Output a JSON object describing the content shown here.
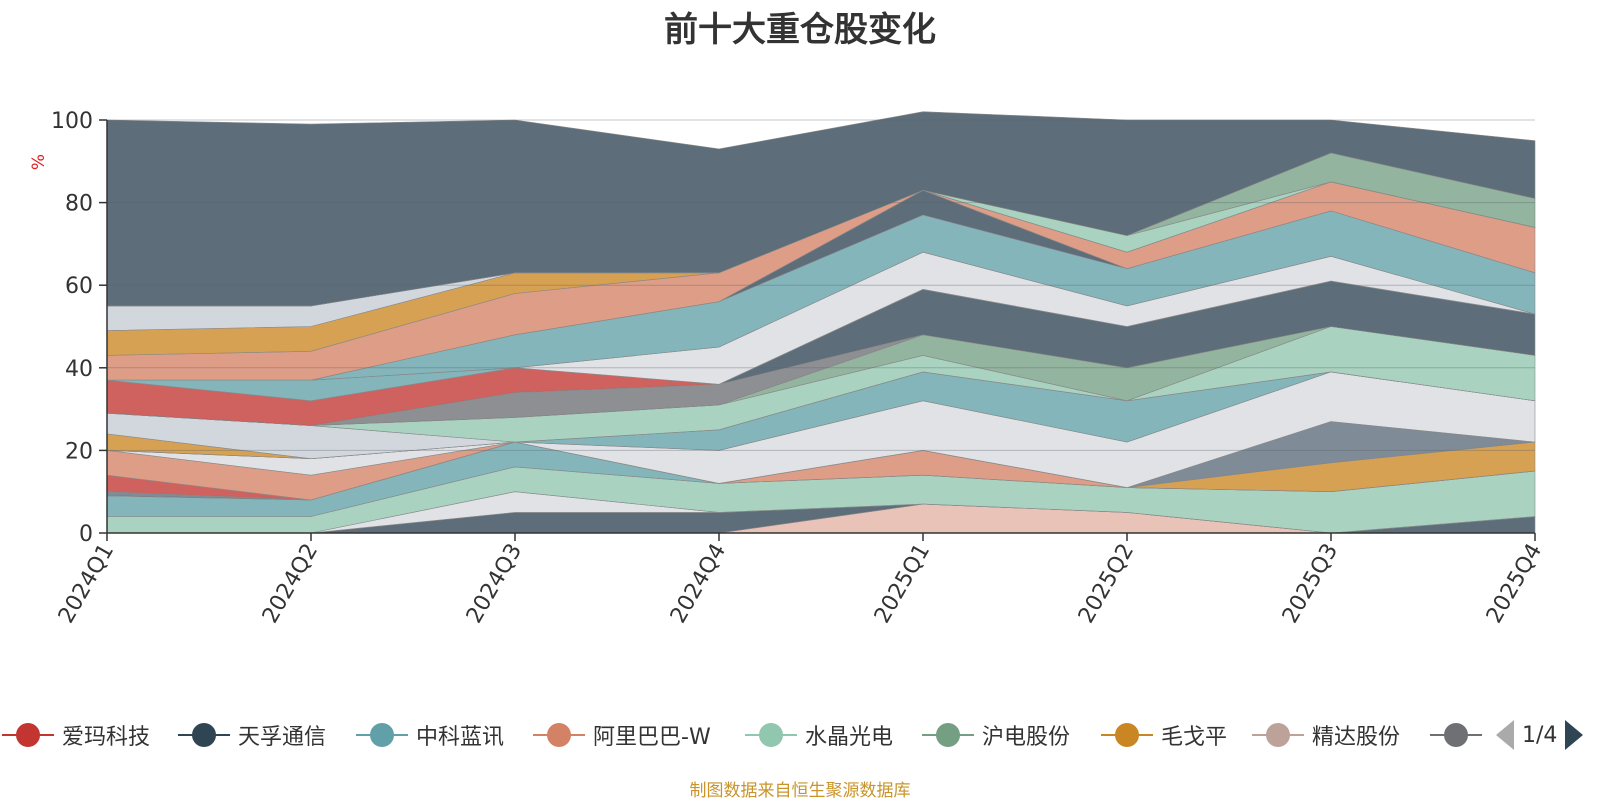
{
  "chart_data": {
    "type": "area",
    "title": "前十大重仓股变化",
    "ylabel": "%",
    "ylim": [
      0,
      100
    ],
    "yticks": [
      0,
      20,
      40,
      60,
      80,
      100
    ],
    "stacked": true,
    "grid": true,
    "categories": [
      "2024Q1",
      "2024Q2",
      "2024Q3",
      "2024Q4",
      "2025Q1",
      "2025Q2",
      "2025Q3",
      "2025Q4"
    ],
    "series": [
      {
        "name": "",
        "color": "#e3b1a4",
        "values": [
          0,
          0,
          0,
          0,
          7,
          5,
          0,
          0
        ]
      },
      {
        "name": "",
        "color": "#2f4554",
        "values": [
          0,
          0,
          5,
          5,
          0,
          0,
          0,
          4
        ]
      },
      {
        "name": "",
        "color": "#d7dadf",
        "values": [
          0,
          0,
          5,
          0,
          0,
          0,
          0,
          0
        ]
      },
      {
        "name": "",
        "color": "#91c7ae",
        "values": [
          4,
          4,
          6,
          7,
          7,
          6,
          10,
          11
        ]
      },
      {
        "name": "",
        "color": "#61a0a8",
        "values": [
          5,
          4,
          6,
          0,
          0,
          0,
          0,
          0
        ]
      },
      {
        "name": "",
        "color": "#d48265",
        "values": [
          0,
          0,
          0,
          0,
          6,
          0,
          0,
          0
        ]
      },
      {
        "name": "",
        "color": "#ca8622",
        "values": [
          0,
          0,
          0,
          0,
          0,
          0,
          7,
          7
        ]
      },
      {
        "name": "",
        "color": "#5b6a78",
        "values": [
          1,
          0,
          0,
          0,
          0,
          0,
          10,
          0
        ]
      },
      {
        "name": "",
        "color": "#c23531",
        "values": [
          4,
          0,
          0,
          0,
          0,
          0,
          0,
          0
        ]
      },
      {
        "name": "",
        "color": "#d48265",
        "values": [
          6,
          6,
          0,
          0,
          0,
          0,
          0,
          0
        ]
      },
      {
        "name": "",
        "color": "#d7dadf",
        "values": [
          0,
          4,
          0,
          8,
          12,
          11,
          12,
          10
        ]
      },
      {
        "name": "",
        "color": "#61a0a8",
        "values": [
          0,
          0,
          0,
          5,
          7,
          10,
          0,
          0
        ]
      },
      {
        "name": "",
        "color": "#ca8622",
        "values": [
          4,
          0,
          0,
          0,
          0,
          0,
          0,
          0
        ]
      },
      {
        "name": "",
        "color": "#c4ccd3",
        "values": [
          5,
          8,
          0,
          0,
          0,
          0,
          0,
          0
        ]
      },
      {
        "name": "",
        "color": "#91c7ae",
        "values": [
          0,
          0,
          6,
          6,
          4,
          0,
          11,
          11
        ]
      },
      {
        "name": "",
        "color": "#749f83",
        "values": [
          0,
          0,
          0,
          0,
          5,
          8,
          0,
          0
        ]
      },
      {
        "name": "",
        "color": "#6e7074",
        "values": [
          0,
          0,
          6,
          5,
          0,
          0,
          0,
          0
        ]
      },
      {
        "name": "",
        "color": "#2f4554",
        "values": [
          0,
          0,
          0,
          0,
          11,
          10,
          11,
          10
        ]
      },
      {
        "name": "",
        "color": "#c23531",
        "values": [
          8,
          6,
          6,
          0,
          0,
          0,
          0,
          0
        ]
      },
      {
        "name": "",
        "color": "#61a0a8",
        "values": [
          0,
          5,
          0,
          0,
          0,
          0,
          0,
          0
        ]
      },
      {
        "name": "",
        "color": "#d7dadf",
        "values": [
          0,
          0,
          0,
          9,
          9,
          5,
          6,
          0
        ]
      },
      {
        "name": "",
        "color": "#61a0a8",
        "values": [
          0,
          0,
          8,
          11,
          9,
          9,
          11,
          10
        ]
      },
      {
        "name": "",
        "color": "#2f4554",
        "values": [
          0,
          0,
          0,
          0,
          6,
          0,
          0,
          0
        ]
      },
      {
        "name": "",
        "color": "#d48265",
        "values": [
          6,
          7,
          10,
          7,
          0,
          4,
          7,
          11
        ]
      },
      {
        "name": "",
        "color": "#ca8622",
        "values": [
          6,
          6,
          5,
          0,
          0,
          0,
          0,
          0
        ]
      },
      {
        "name": "",
        "color": "#c4ccd3",
        "values": [
          6,
          5,
          0,
          0,
          0,
          0,
          0,
          0
        ]
      },
      {
        "name": "",
        "color": "#91c7ae",
        "values": [
          0,
          0,
          0,
          0,
          0,
          4,
          0,
          0
        ]
      },
      {
        "name": "",
        "color": "#749f83",
        "values": [
          0,
          0,
          0,
          0,
          0,
          0,
          7,
          7
        ]
      },
      {
        "name": "",
        "color": "#2f4554",
        "values": [
          45,
          44,
          37,
          30,
          19,
          28,
          8,
          14
        ]
      }
    ]
  },
  "legend": {
    "items": [
      {
        "label": "爱玛科技",
        "color": "#c23531"
      },
      {
        "label": "天孚通信",
        "color": "#2f4554"
      },
      {
        "label": "中科蓝讯",
        "color": "#61a0a8"
      },
      {
        "label": "阿里巴巴-W",
        "color": "#d48265"
      },
      {
        "label": "水晶光电",
        "color": "#91c7ae"
      },
      {
        "label": "沪电股份",
        "color": "#749f83"
      },
      {
        "label": "毛戈平",
        "color": "#ca8622"
      },
      {
        "label": "精达股份",
        "color": "#bda29a"
      },
      {
        "label": "",
        "color": "#6e7074"
      }
    ],
    "page": "1/4"
  },
  "footer": "制图数据来自恒生聚源数据库"
}
